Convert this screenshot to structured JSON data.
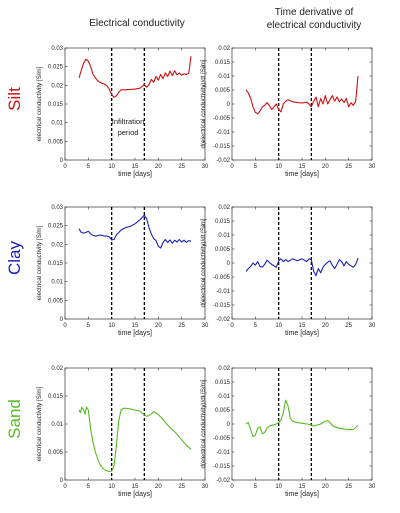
{
  "columns": [
    {
      "title_lines": [
        "Electrical conductivity"
      ]
    },
    {
      "title_lines": [
        "Time derivative of",
        "electrical conductivity"
      ]
    }
  ],
  "rows": [
    {
      "label": "Silt",
      "color": "#cc1111"
    },
    {
      "label": "Clay",
      "color": "#1a22b8"
    },
    {
      "label": "Sand",
      "color": "#55bb22"
    }
  ],
  "annotation": {
    "lines": [
      "Infiltration",
      "period"
    ]
  },
  "chart_data": [
    {
      "type": "line",
      "row": 0,
      "col": 0,
      "xlabel": "time [days]",
      "ylabel": "electrical conductivity [S/m]",
      "xlim": [
        0,
        30
      ],
      "ylim": [
        0,
        0.03
      ],
      "xticks": [
        "0",
        "5",
        "10",
        "15",
        "20",
        "25",
        "30"
      ],
      "yticks": [
        "0",
        "0.005",
        "0.01",
        "0.015",
        "0.02",
        "0.025",
        "0.03"
      ],
      "vlines": [
        10,
        17
      ],
      "color": "#cc1111",
      "x": [
        3,
        3.5,
        4,
        4.5,
        5,
        5.5,
        6,
        6.5,
        7,
        7.5,
        8,
        8.5,
        9,
        9.5,
        10,
        10.5,
        11,
        11.5,
        12,
        13,
        14,
        15,
        16,
        16.5,
        17,
        17.5,
        18,
        18.5,
        19,
        19.5,
        20,
        20.5,
        21,
        21.5,
        22,
        22.5,
        23,
        23.5,
        24,
        24.5,
        25,
        25.5,
        26,
        26.5,
        27
      ],
      "y": [
        0.022,
        0.024,
        0.026,
        0.027,
        0.0265,
        0.025,
        0.023,
        0.022,
        0.0212,
        0.0208,
        0.0205,
        0.0203,
        0.0198,
        0.019,
        0.0175,
        0.0168,
        0.0172,
        0.0181,
        0.0188,
        0.0188,
        0.0189,
        0.019,
        0.0192,
        0.0197,
        0.0202,
        0.0195,
        0.0202,
        0.0216,
        0.0208,
        0.0224,
        0.0214,
        0.0229,
        0.0218,
        0.0233,
        0.0224,
        0.0238,
        0.0226,
        0.0239,
        0.0228,
        0.0233,
        0.0227,
        0.0231,
        0.0229,
        0.0232,
        0.0278
      ]
    },
    {
      "type": "line",
      "row": 0,
      "col": 1,
      "xlabel": "time [days]",
      "ylabel": "d(electrical conductivity)/dt [S/m]",
      "xlim": [
        0,
        30
      ],
      "ylim": [
        -0.02,
        0.02
      ],
      "xticks": [
        "0",
        "5",
        "10",
        "15",
        "20",
        "25",
        "30"
      ],
      "yticks": [
        "-0.02",
        "-0.015",
        "-0.01",
        "-0.005",
        "0",
        "0.005",
        "0.01",
        "0.015",
        "0.02"
      ],
      "vlines": [
        10,
        17
      ],
      "color": "#cc1111",
      "x": [
        3,
        3.5,
        4,
        4.5,
        5,
        5.5,
        6,
        6.5,
        7,
        7.5,
        8,
        8.5,
        9,
        9.5,
        10,
        10.5,
        11,
        11.5,
        12,
        13,
        14,
        15,
        16,
        16.5,
        17,
        17.5,
        18,
        18.5,
        19,
        19.5,
        20,
        20.5,
        21,
        21.5,
        22,
        22.5,
        23,
        23.5,
        24,
        24.5,
        25,
        25.5,
        26,
        26.5,
        27
      ],
      "y": [
        0.005,
        0.004,
        0.002,
        -0.001,
        -0.003,
        -0.0035,
        -0.0025,
        -0.001,
        -0.0005,
        0.0005,
        -0.0005,
        -0.002,
        -0.001,
        0.0,
        -0.002,
        -0.0028,
        0.0,
        0.001,
        0.0015,
        0.0008,
        0.0005,
        0.0004,
        0.0006,
        0.0,
        -0.001,
        0.001,
        0.0025,
        -0.001,
        0.002,
        0.0,
        0.003,
        0.0,
        0.0015,
        0.003,
        0.001,
        0.0025,
        0.0008,
        0.0018,
        0.0005,
        0.002,
        -0.001,
        0.0005,
        -0.0005,
        0.001,
        0.01
      ]
    },
    {
      "type": "line",
      "row": 1,
      "col": 0,
      "xlabel": "time [days]",
      "ylabel": "electrical conductivity [S/m]",
      "xlim": [
        0,
        30
      ],
      "ylim": [
        0,
        0.03
      ],
      "xticks": [
        "0",
        "5",
        "10",
        "15",
        "20",
        "25",
        "30"
      ],
      "yticks": [
        "0",
        "0.005",
        "0.01",
        "0.015",
        "0.02",
        "0.025",
        "0.03"
      ],
      "vlines": [
        10,
        17
      ],
      "color": "#1a22b8",
      "x": [
        3,
        3.5,
        4,
        4.5,
        5,
        5.5,
        6,
        6.5,
        7,
        7.5,
        8,
        8.5,
        9,
        9.5,
        10,
        10.5,
        11,
        12,
        13,
        14,
        15,
        15.5,
        16,
        16.5,
        17,
        17.5,
        18,
        18.5,
        19,
        19.5,
        20,
        20.5,
        21,
        21.5,
        22,
        22.5,
        23,
        23.5,
        24,
        24.5,
        25,
        25.5,
        26,
        26.5,
        27
      ],
      "y": [
        0.0242,
        0.0232,
        0.023,
        0.0232,
        0.0235,
        0.0228,
        0.0224,
        0.0222,
        0.0223,
        0.0225,
        0.0224,
        0.0222,
        0.0222,
        0.022,
        0.0212,
        0.0213,
        0.0225,
        0.0238,
        0.0245,
        0.0248,
        0.0255,
        0.026,
        0.0265,
        0.0272,
        0.0278,
        0.0268,
        0.0245,
        0.0228,
        0.0215,
        0.021,
        0.0195,
        0.019,
        0.0205,
        0.0213,
        0.0205,
        0.0212,
        0.0203,
        0.0211,
        0.0206,
        0.0213,
        0.0206,
        0.0211,
        0.0205,
        0.021,
        0.0208
      ]
    },
    {
      "type": "line",
      "row": 1,
      "col": 1,
      "xlabel": "time [days]",
      "ylabel": "d(electrical conductivity)/dt [S/m]",
      "xlim": [
        0,
        30
      ],
      "ylim": [
        -0.02,
        0.02
      ],
      "xticks": [
        "0",
        "5",
        "10",
        "15",
        "20",
        "25",
        "30"
      ],
      "yticks": [
        "-0.02",
        "-0.015",
        "-0.01",
        "-0.005",
        "0",
        "0.005",
        "0.01",
        "0.015",
        "0.02"
      ],
      "vlines": [
        10,
        17
      ],
      "color": "#1a22b8",
      "x": [
        3,
        3.5,
        4,
        4.5,
        5,
        5.5,
        6,
        6.5,
        7,
        7.5,
        8,
        8.5,
        9,
        9.5,
        10,
        10.5,
        11,
        11.5,
        12,
        13,
        14,
        15,
        16,
        16.5,
        17,
        17.5,
        18,
        18.5,
        19,
        19.5,
        20,
        20.5,
        21,
        21.5,
        22,
        22.5,
        23,
        23.5,
        24,
        24.5,
        25,
        25.5,
        26,
        26.5,
        27
      ],
      "y": [
        -0.003,
        -0.002,
        -0.0012,
        0.0,
        -0.0008,
        0.0005,
        -0.0012,
        -0.0015,
        -0.0005,
        0.001,
        0.0002,
        -0.0005,
        -0.001,
        -0.0015,
        0.0008,
        0.0015,
        0.0005,
        0.0012,
        0.0005,
        0.0015,
        0.0008,
        0.0015,
        0.0005,
        0.0015,
        0.0012,
        -0.003,
        -0.0045,
        -0.002,
        -0.0035,
        -0.0015,
        -0.0005,
        0.0003,
        0.0008,
        -0.0008,
        -0.002,
        -0.0005,
        0.0012,
        0.0005,
        -0.001,
        0.0005,
        -0.0005,
        -0.001,
        -0.0015,
        -0.0005,
        0.0018
      ]
    },
    {
      "type": "line",
      "row": 2,
      "col": 0,
      "xlabel": "time [days]",
      "ylabel": "electrical conductivity [S/m]",
      "xlim": [
        0,
        30
      ],
      "ylim": [
        0,
        0.02
      ],
      "xticks": [
        "0",
        "5",
        "10",
        "15",
        "20",
        "25",
        "30"
      ],
      "yticks": [
        "0",
        "0.005",
        "0.01",
        "0.015",
        "0.02"
      ],
      "vlines": [
        10,
        17
      ],
      "color": "#55bb22",
      "x": [
        3,
        3.3,
        3.6,
        4,
        4.3,
        4.6,
        5,
        5.5,
        6,
        6.5,
        7,
        7.5,
        8,
        8.5,
        9,
        9.5,
        10,
        10.5,
        11,
        11.5,
        12,
        12.5,
        13,
        14,
        15,
        16,
        16.5,
        17,
        17.5,
        18,
        18.5,
        19,
        19.5,
        20,
        21,
        22,
        23,
        24,
        25,
        26,
        27
      ],
      "y": [
        0.0125,
        0.012,
        0.013,
        0.0125,
        0.0118,
        0.013,
        0.0125,
        0.009,
        0.0068,
        0.005,
        0.0038,
        0.0028,
        0.0022,
        0.0018,
        0.0016,
        0.0015,
        0.0016,
        0.0025,
        0.006,
        0.0105,
        0.0125,
        0.0128,
        0.0128,
        0.0127,
        0.0125,
        0.0123,
        0.012,
        0.0116,
        0.0114,
        0.0115,
        0.0118,
        0.0122,
        0.012,
        0.0117,
        0.0108,
        0.0098,
        0.009,
        0.0082,
        0.0072,
        0.0062,
        0.0055
      ]
    },
    {
      "type": "line",
      "row": 2,
      "col": 1,
      "xlabel": "time [days]",
      "ylabel": "d(electrical conductivity)/dt [S/m]",
      "xlim": [
        0,
        30
      ],
      "ylim": [
        -0.02,
        0.02
      ],
      "xticks": [
        "0",
        "5",
        "10",
        "15",
        "20",
        "25",
        "30"
      ],
      "yticks": [
        "-0.02",
        "-0.015",
        "-0.01",
        "-0.005",
        "0",
        "0.005",
        "0.01",
        "0.015",
        "0.02"
      ],
      "vlines": [
        10,
        17
      ],
      "color": "#55bb22",
      "x": [
        3,
        3.5,
        4,
        4.5,
        5,
        5.5,
        6,
        6.5,
        7,
        7.5,
        8,
        8.5,
        9,
        9.5,
        10,
        10.5,
        11,
        11.5,
        12,
        12.5,
        13,
        14,
        15,
        16,
        17,
        17.5,
        18,
        19,
        20,
        20.5,
        21,
        21.5,
        22,
        23,
        24,
        25,
        26,
        27
      ],
      "y": [
        0.0,
        0.0005,
        -0.002,
        -0.0045,
        -0.004,
        -0.0015,
        -0.001,
        -0.0035,
        -0.003,
        -0.0015,
        -0.0008,
        -0.0005,
        -0.0003,
        0.0,
        0.0005,
        0.0015,
        0.004,
        0.0085,
        0.0065,
        0.002,
        0.001,
        0.0005,
        0.0003,
        0.0,
        -0.0003,
        -0.0008,
        -0.0005,
        0.0,
        0.001,
        0.0012,
        0.0005,
        -0.0005,
        -0.001,
        -0.0015,
        -0.0018,
        -0.002,
        -0.002,
        -0.0005
      ]
    }
  ]
}
